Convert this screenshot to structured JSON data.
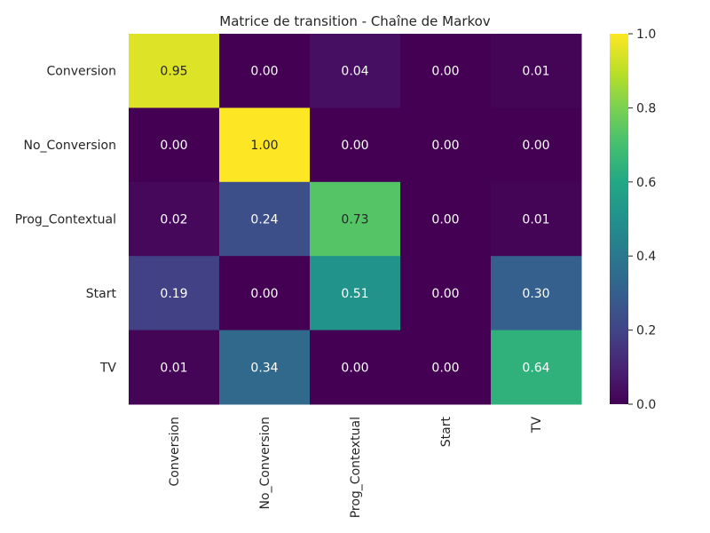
{
  "chart_data": {
    "type": "heatmap",
    "title": "Matrice de transition - Chaîne de Markov",
    "xlabel": "",
    "ylabel": "",
    "rows": [
      "Conversion",
      "No_Conversion",
      "Prog_Contextual",
      "Start",
      "TV"
    ],
    "columns": [
      "Conversion",
      "No_Conversion",
      "Prog_Contextual",
      "Start",
      "TV"
    ],
    "values": [
      [
        0.95,
        0.0,
        0.04,
        0.0,
        0.01
      ],
      [
        0.0,
        1.0,
        0.0,
        0.0,
        0.0
      ],
      [
        0.02,
        0.24,
        0.73,
        0.0,
        0.01
      ],
      [
        0.19,
        0.0,
        0.51,
        0.0,
        0.3
      ],
      [
        0.01,
        0.34,
        0.0,
        0.0,
        0.64
      ]
    ],
    "value_format": "0.00",
    "colormap": "viridis",
    "vmin": 0,
    "vmax": 1,
    "colorbar_ticks": [
      "0.0",
      "0.2",
      "0.4",
      "0.6",
      "0.8",
      "1.0"
    ],
    "colorbar_tick_values": [
      0,
      0.2,
      0.4,
      0.6,
      0.8,
      1.0
    ],
    "annotation_colors": {
      "on_dark": "#ffffff",
      "on_light": "#262626"
    },
    "tick_color": "#262626",
    "background": "#ffffff"
  }
}
